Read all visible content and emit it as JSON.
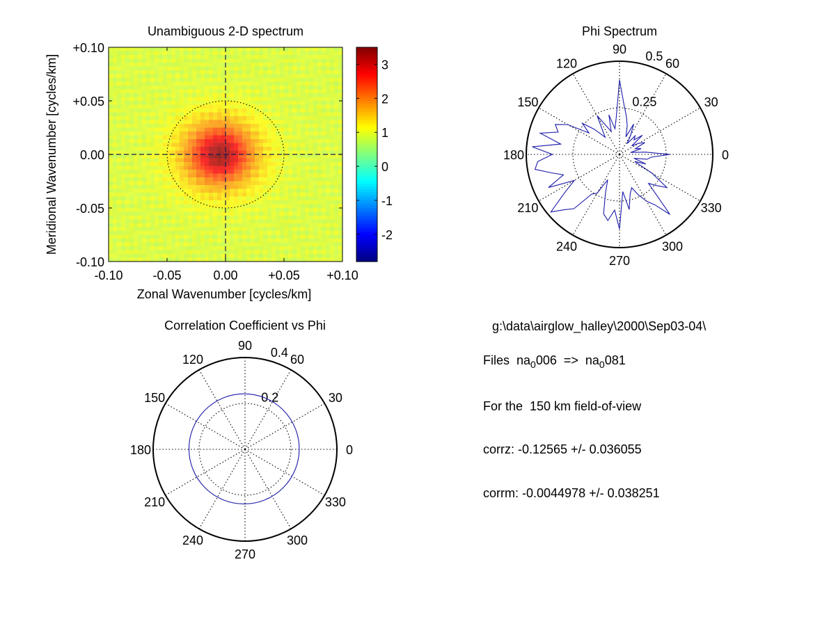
{
  "chart_data": [
    {
      "type": "heatmap",
      "title": "Unambiguous 2-D spectrum",
      "xlabel": "Zonal Wavenumber [cycles/km]",
      "ylabel": "Meridional Wavenumber [cycles/km]",
      "xlim": [
        -0.1,
        0.1
      ],
      "ylim": [
        -0.1,
        0.1
      ],
      "xticks": [
        "-0.10",
        "-0.05",
        "0.00",
        "+0.05",
        "+0.10"
      ],
      "yticks": [
        "+0.10",
        "+0.05",
        "0.00",
        "-0.05",
        "-0.10"
      ],
      "colorbar": {
        "range": [
          -2.8,
          3.5
        ],
        "ticks": [
          "3",
          "2",
          "1",
          "0",
          "-1",
          "-2"
        ],
        "colormap": "jet"
      },
      "peak": {
        "x": -0.005,
        "y": 0.0,
        "value": 3.4
      },
      "background_value": 0.9,
      "dashed_axes": true,
      "dotted_circle_radius": 0.05
    },
    {
      "type": "polar_line",
      "title": "Phi Spectrum",
      "angle_labels": [
        "90",
        "60",
        "30",
        "0",
        "330",
        "300",
        "270",
        "240",
        "210",
        "180",
        "150",
        "120"
      ],
      "radial_ticks": [
        "0.25",
        "0.5"
      ],
      "rmax": 0.5,
      "series": [
        {
          "color": "#1a1aa8",
          "angles_deg_step": 5,
          "r": [
            0.27,
            0.14,
            0.06,
            0.12,
            0.09,
            0.15,
            0.12,
            0.08,
            0.16,
            0.11,
            0.13,
            0.07,
            0.12,
            0.18,
            0.1,
            0.16,
            0.21,
            0.27,
            0.4,
            0.2,
            0.14,
            0.22,
            0.13,
            0.17,
            0.24,
            0.16,
            0.12,
            0.19,
            0.26,
            0.2,
            0.32,
            0.38,
            0.35,
            0.44,
            0.32,
            0.47,
            0.36,
            0.44,
            0.46,
            0.38,
            0.32,
            0.42,
            0.28,
            0.36,
            0.48,
            0.42,
            0.38,
            0.26,
            0.24,
            0.15,
            0.22,
            0.33,
            0.36,
            0.3,
            0.4,
            0.2,
            0.3,
            0.22,
            0.19,
            0.24,
            0.29,
            0.33,
            0.42,
            0.22,
            0.26,
            0.31,
            0.2,
            0.09,
            0.15,
            0.08,
            0.15,
            0.17
          ]
        }
      ]
    },
    {
      "type": "polar_line",
      "title": "Correlation Coefficient vs Phi",
      "angle_labels": [
        "90",
        "60",
        "30",
        "0",
        "330",
        "300",
        "270",
        "240",
        "210",
        "180",
        "150",
        "120"
      ],
      "radial_ticks": [
        "0.2",
        "0.4"
      ],
      "rmax": 0.4,
      "series": [
        {
          "color": "#1a1aa8",
          "shape": "circle",
          "r": 0.24,
          "center_offset": [
            -0.004,
            0.002
          ]
        }
      ]
    }
  ],
  "info": {
    "path": "g:\\data\\airglow_halley\\2000\\Sep03-04\\",
    "files_prefix": "Files  na",
    "files_sub1": "0",
    "files_mid": "006  =>  na",
    "files_sub2": "0",
    "files_end": "081",
    "fov": "For the  150 km field-of-view",
    "corrz": "corrz: -0.12565 +/- 0.036055",
    "corrm": "corrm: -0.0044978 +/- 0.038251"
  }
}
